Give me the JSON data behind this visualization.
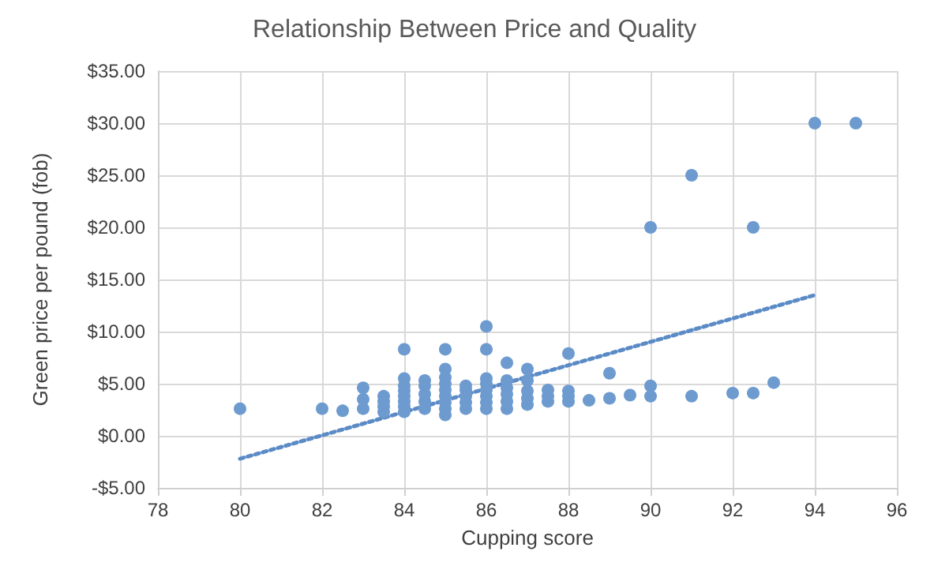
{
  "chart_data": {
    "type": "scatter",
    "title": "Relationship Between Price and Quality",
    "xlabel": "Cupping score",
    "ylabel": "Green price per pound (fob)",
    "xlim": [
      78,
      96
    ],
    "xticks": [
      78,
      80,
      82,
      84,
      86,
      88,
      90,
      92,
      94,
      96
    ],
    "ylim": [
      -5,
      35
    ],
    "yticks": [
      {
        "value": -5,
        "label": "-$5.00"
      },
      {
        "value": 0,
        "label": "$0.00"
      },
      {
        "value": 5,
        "label": "$5.00"
      },
      {
        "value": 10,
        "label": "$10.00"
      },
      {
        "value": 15,
        "label": "$15.00"
      },
      {
        "value": 20,
        "label": "$20.00"
      },
      {
        "value": 25,
        "label": "$25.00"
      },
      {
        "value": 30,
        "label": "$30.00"
      },
      {
        "value": 35,
        "label": "$35.00"
      }
    ],
    "grid": true,
    "marker": "circle",
    "series": [
      {
        "color": "#6e9bcf",
        "x": [
          80,
          82,
          82.5,
          83,
          83,
          83,
          83.5,
          83.5,
          83.5,
          83.5,
          84,
          84,
          84,
          84,
          84,
          84,
          84,
          84,
          84.5,
          84.5,
          84.5,
          84.5,
          84.5,
          85,
          85,
          85,
          85,
          85,
          85,
          85,
          85,
          85,
          85.5,
          85.5,
          85.5,
          85.5,
          85.5,
          86,
          86,
          86,
          86,
          86,
          86,
          86,
          86,
          86.5,
          86.5,
          86.5,
          86.5,
          86.5,
          86.5,
          87,
          87,
          87,
          87,
          87,
          87.5,
          87.5,
          87.5,
          88,
          88,
          88,
          88,
          88.5,
          89,
          89,
          89.5,
          90,
          90,
          90,
          91,
          91,
          92,
          92.5,
          92.5,
          93,
          94,
          95
        ],
        "values": [
          2.6,
          2.6,
          2.4,
          4.6,
          3.5,
          2.6,
          2.3,
          2.8,
          3.3,
          3.8,
          2.3,
          2.8,
          3.3,
          3.8,
          4.3,
          4.8,
          5.5,
          8.3,
          2.6,
          3.3,
          4.0,
          4.8,
          5.3,
          2.0,
          2.6,
          3.2,
          3.8,
          4.4,
          5.0,
          5.6,
          6.4,
          8.3,
          2.6,
          3.2,
          3.8,
          4.4,
          4.8,
          2.6,
          3.2,
          3.8,
          4.4,
          5.0,
          5.5,
          8.3,
          10.5,
          2.6,
          3.3,
          4.0,
          4.6,
          5.3,
          7.0,
          3.0,
          3.6,
          4.3,
          5.3,
          6.4,
          3.3,
          3.8,
          4.4,
          3.3,
          3.8,
          4.3,
          7.9,
          3.4,
          3.6,
          6.0,
          3.9,
          3.8,
          4.8,
          20,
          3.8,
          25,
          4.1,
          4.1,
          20,
          5.1,
          30,
          30
        ]
      },
      {
        "type": "line",
        "color": "#5b8bc6",
        "marker": "none",
        "line_style": "dotted",
        "x": [
          80,
          94
        ],
        "values": [
          -2.2,
          13.5
        ]
      }
    ]
  }
}
